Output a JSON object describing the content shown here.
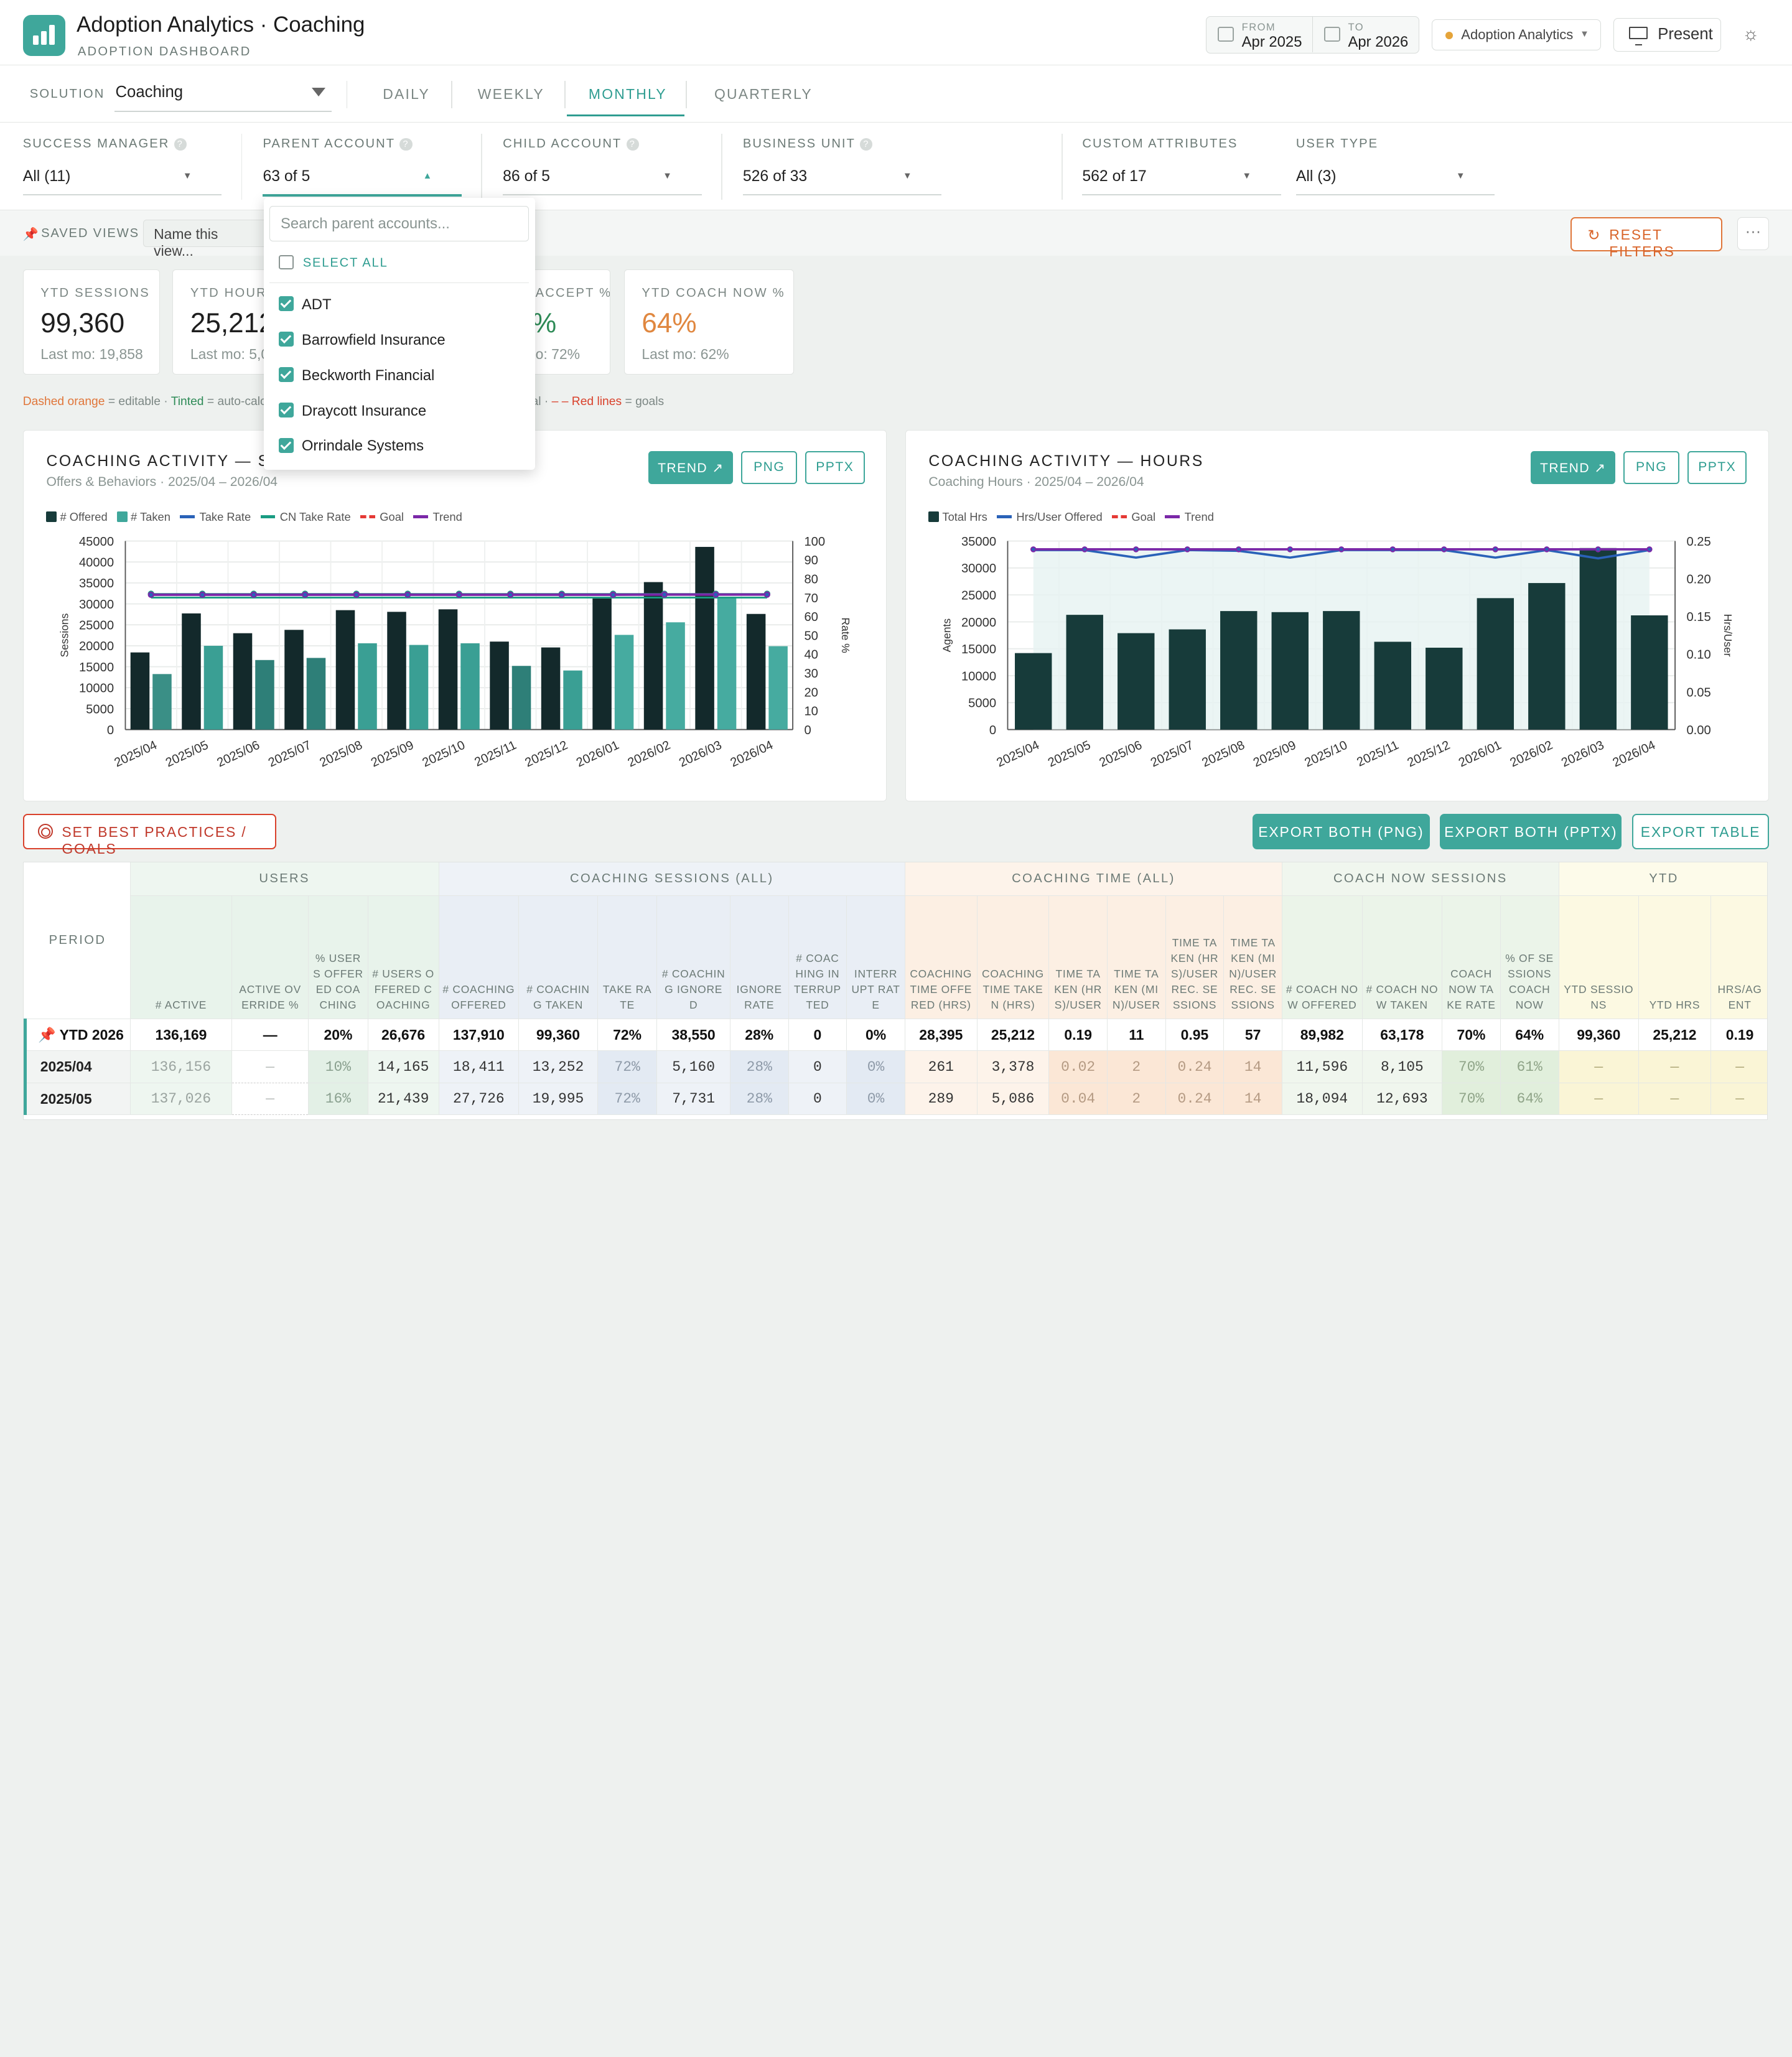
{
  "header": {
    "title": "Adoption Analytics · Coaching",
    "subtitle": "ADOPTION DASHBOARD",
    "from_label": "FROM",
    "from_value": "Apr 2025",
    "to_label": "TO",
    "to_value": "Apr 2026",
    "solution_pill": "Adoption Analytics",
    "present_label": "Present"
  },
  "tabs": {
    "solution_label": "SOLUTION",
    "solution_value": "Coaching",
    "items": [
      "DAILY",
      "WEEKLY",
      "MONTHLY",
      "QUARTERLY"
    ],
    "active": "MONTHLY"
  },
  "filters": [
    {
      "label": "SUCCESS MANAGER",
      "value": "All (11)",
      "help": "?"
    },
    {
      "label": "PARENT ACCOUNT",
      "value": "63 of 5",
      "help": "?"
    },
    {
      "label": "CHILD ACCOUNT",
      "value": "86 of 5",
      "help": "?"
    },
    {
      "label": "BUSINESS UNIT",
      "value": "526 of 33",
      "help": "?"
    },
    {
      "label": "CUSTOM ATTRIBUTES",
      "value": "562 of 17"
    },
    {
      "label": "USER TYPE",
      "value": "All (3)"
    }
  ],
  "saved_views": {
    "label": "SAVED VIEWS",
    "placeholder": "Name this view...",
    "reset_label": "RESET FILTERS",
    "more": "···"
  },
  "kpis": [
    {
      "label": "YTD SESSIONS",
      "value": "99,360",
      "sub": "Last mo: 19,858"
    },
    {
      "label": "YTD HOURS",
      "value": "25,212",
      "sub": "Last mo: 5,0"
    },
    {
      "label": "ACCEPT %",
      "value": "%",
      "sub": "o: 72%"
    },
    {
      "label": "YTD COACH NOW %",
      "value": "64%",
      "sub": "Last mo: 62%"
    }
  ],
  "legend_note": {
    "dashed": "Dashed orange",
    "dashed_desc": " = editable · ",
    "tinted": "Tinted",
    "tinted_desc": " = auto-calc",
    "total_desc": "d total · ",
    "redlines": "– – Red lines",
    "redlines_desc": " = goals"
  },
  "dropdown": {
    "search_placeholder": "Search parent accounts...",
    "select_all": "SELECT ALL",
    "items": [
      "ADT",
      "Barrowfield Insurance",
      "Beckworth Financial",
      "Draycott Insurance",
      "Orrindale Systems"
    ]
  },
  "charts": [
    {
      "title": "COACHING ACTIVITY — SESSIONS",
      "subtitle": "Offers & Behaviors · 2025/04 – 2026/04",
      "buttons": [
        "TREND ↗",
        "PNG",
        "PPTX"
      ],
      "legend": [
        "# Offered",
        "# Taken",
        "Take Rate",
        "CN Take Rate",
        "Goal",
        "Trend"
      ]
    },
    {
      "title": "COACHING ACTIVITY — HOURS",
      "subtitle": "Coaching Hours · 2025/04 – 2026/04",
      "buttons": [
        "TREND ↗",
        "PNG",
        "PPTX"
      ],
      "legend": [
        "Total Hrs",
        "Hrs/User Offered",
        "Goal",
        "Trend"
      ]
    }
  ],
  "chart_data": [
    {
      "type": "bar",
      "title": "COACHING ACTIVITY — SESSIONS",
      "categories": [
        "2025/04",
        "2025/05",
        "2025/06",
        "2025/07",
        "2025/08",
        "2025/09",
        "2025/10",
        "2025/11",
        "2025/12",
        "2026/01",
        "2026/02",
        "2026/03",
        "2026/04"
      ],
      "series": [
        {
          "name": "# Offered",
          "type": "bar",
          "axis": "left",
          "values": [
            18411,
            27726,
            23000,
            23800,
            28500,
            28100,
            28700,
            21000,
            19600,
            31300,
            35200,
            43600,
            27600
          ]
        },
        {
          "name": "# Taken",
          "type": "bar",
          "axis": "left",
          "values": [
            13252,
            19995,
            16600,
            17100,
            20600,
            20200,
            20600,
            15200,
            14100,
            22600,
            25600,
            31400,
            19900
          ]
        },
        {
          "name": "Take Rate",
          "type": "line",
          "axis": "right",
          "values": [
            72,
            72,
            72,
            72,
            72,
            72,
            72,
            72,
            72,
            72,
            72,
            72,
            72
          ]
        },
        {
          "name": "CN Take Rate",
          "type": "line",
          "axis": "right",
          "values": [
            70,
            70,
            70,
            70,
            70,
            70,
            70,
            70,
            70,
            70,
            70,
            70,
            70
          ]
        },
        {
          "name": "Trend",
          "type": "line",
          "axis": "right",
          "values": [
            71.5,
            71.5,
            71.5,
            71.5,
            71.5,
            71.5,
            71.5,
            71.5,
            71.5,
            71.5,
            71.6,
            71.6,
            71.6
          ]
        }
      ],
      "ylabel": "Sessions",
      "y2label": "Rate %",
      "ylim": [
        0,
        45000
      ],
      "y2lim": [
        0,
        100
      ],
      "yticks": [
        0,
        5000,
        10000,
        15000,
        20000,
        25000,
        30000,
        35000,
        40000,
        45000
      ],
      "y2ticks": [
        0,
        10,
        20,
        30,
        40,
        50,
        60,
        70,
        80,
        90,
        100
      ],
      "grid": true,
      "legend": "top-left"
    },
    {
      "type": "bar",
      "title": "COACHING ACTIVITY — HOURS",
      "categories": [
        "2025/04",
        "2025/05",
        "2025/06",
        "2025/07",
        "2025/08",
        "2025/09",
        "2025/10",
        "2025/11",
        "2025/12",
        "2026/01",
        "2026/02",
        "2026/03",
        "2026/04"
      ],
      "series": [
        {
          "name": "Total Hrs",
          "type": "bar",
          "axis": "left",
          "values": [
            14200,
            21300,
            17900,
            18600,
            22000,
            21800,
            22000,
            16300,
            15200,
            24400,
            27200,
            33700,
            21200
          ]
        },
        {
          "name": "Hrs/User Offered",
          "type": "line",
          "axis": "right",
          "values": [
            0.238,
            0.238,
            0.228,
            0.238,
            0.237,
            0.228,
            0.238,
            0.238,
            0.238,
            0.228,
            0.238,
            0.227,
            0.238
          ]
        },
        {
          "name": "Trend",
          "type": "line",
          "axis": "right",
          "values": [
            0.239,
            0.239,
            0.239,
            0.239,
            0.239,
            0.239,
            0.239,
            0.239,
            0.239,
            0.239,
            0.239,
            0.239,
            0.239
          ]
        }
      ],
      "ylabel": "Agents",
      "y2label": "Hrs/User",
      "ylim": [
        0,
        35000
      ],
      "y2lim": [
        0,
        0.25
      ],
      "yticks": [
        0,
        5000,
        10000,
        15000,
        20000,
        25000,
        30000,
        35000
      ],
      "y2ticks": [
        "0.00",
        "0.05",
        "0.10",
        "0.15",
        "0.20",
        "0.25"
      ],
      "grid": true,
      "legend": "top-left"
    }
  ],
  "actions": {
    "goals": "SET BEST PRACTICES / GOALS",
    "export_png": "EXPORT BOTH (PNG)",
    "export_pptx": "EXPORT BOTH (PPTX)",
    "export_table": "EXPORT TABLE"
  },
  "table": {
    "period_header": "PERIOD",
    "groups": [
      "USERS",
      "COACHING SESSIONS (ALL)",
      "COACHING TIME (ALL)",
      "COACH NOW SESSIONS",
      "YTD"
    ],
    "columns": [
      "# ACTIVE",
      "ACTIVE OVERRIDE %",
      "% USERS OFFERED COACHING",
      "# USERS OFFERED COACHING",
      "# COACHING OFFERED",
      "# COACHING TAKEN",
      "TAKE RATE",
      "# COACHING IGNORED",
      "IGNORE RATE",
      "# COACHING INTERRUPTED",
      "INTERRUPT RATE",
      "COACHING TIME OFFERED (HRS)",
      "COACHING TIME TAKEN (HRS)",
      "TIME TAKEN (HRS)/USER",
      "TIME TAKEN (MIN)/USER",
      "TIME TAKEN (HRS)/USER REC. SESSIONS",
      "TIME TAKEN (MIN)/USER REC. SESSIONS",
      "# COACH NOW OFFERED",
      "# COACH NOW TAKEN",
      "COACH NOW TAKE RATE",
      "% OF SESSIONS COACH NOW",
      "YTD SESSIONS",
      "YTD HRS",
      "HRS/AGENT"
    ],
    "ytd_row": {
      "period": "YTD 2026",
      "cells": [
        "136,169",
        "—",
        "20%",
        "26,676",
        "137,910",
        "99,360",
        "72%",
        "38,550",
        "28%",
        "0",
        "0%",
        "28,395",
        "25,212",
        "0.19",
        "11",
        "0.95",
        "57",
        "89,982",
        "63,178",
        "70%",
        "64%",
        "99,360",
        "25,212",
        "0.19"
      ]
    },
    "rows": [
      {
        "period": "2025/04",
        "cells": [
          "136,156",
          "—",
          "10%",
          "14,165",
          "18,411",
          "13,252",
          "72%",
          "5,160",
          "28%",
          "0",
          "0%",
          "261",
          "3,378",
          "0.02",
          "2",
          "0.24",
          "14",
          "11,596",
          "8,105",
          "70%",
          "61%",
          "—",
          "—",
          "—"
        ]
      },
      {
        "period": "2025/05",
        "cells": [
          "137,026",
          "—",
          "16%",
          "21,439",
          "27,726",
          "19,995",
          "72%",
          "7,731",
          "28%",
          "0",
          "0%",
          "289",
          "5,086",
          "0.04",
          "2",
          "0.24",
          "14",
          "18,094",
          "12,693",
          "70%",
          "64%",
          "—",
          "—",
          "—"
        ]
      }
    ]
  }
}
